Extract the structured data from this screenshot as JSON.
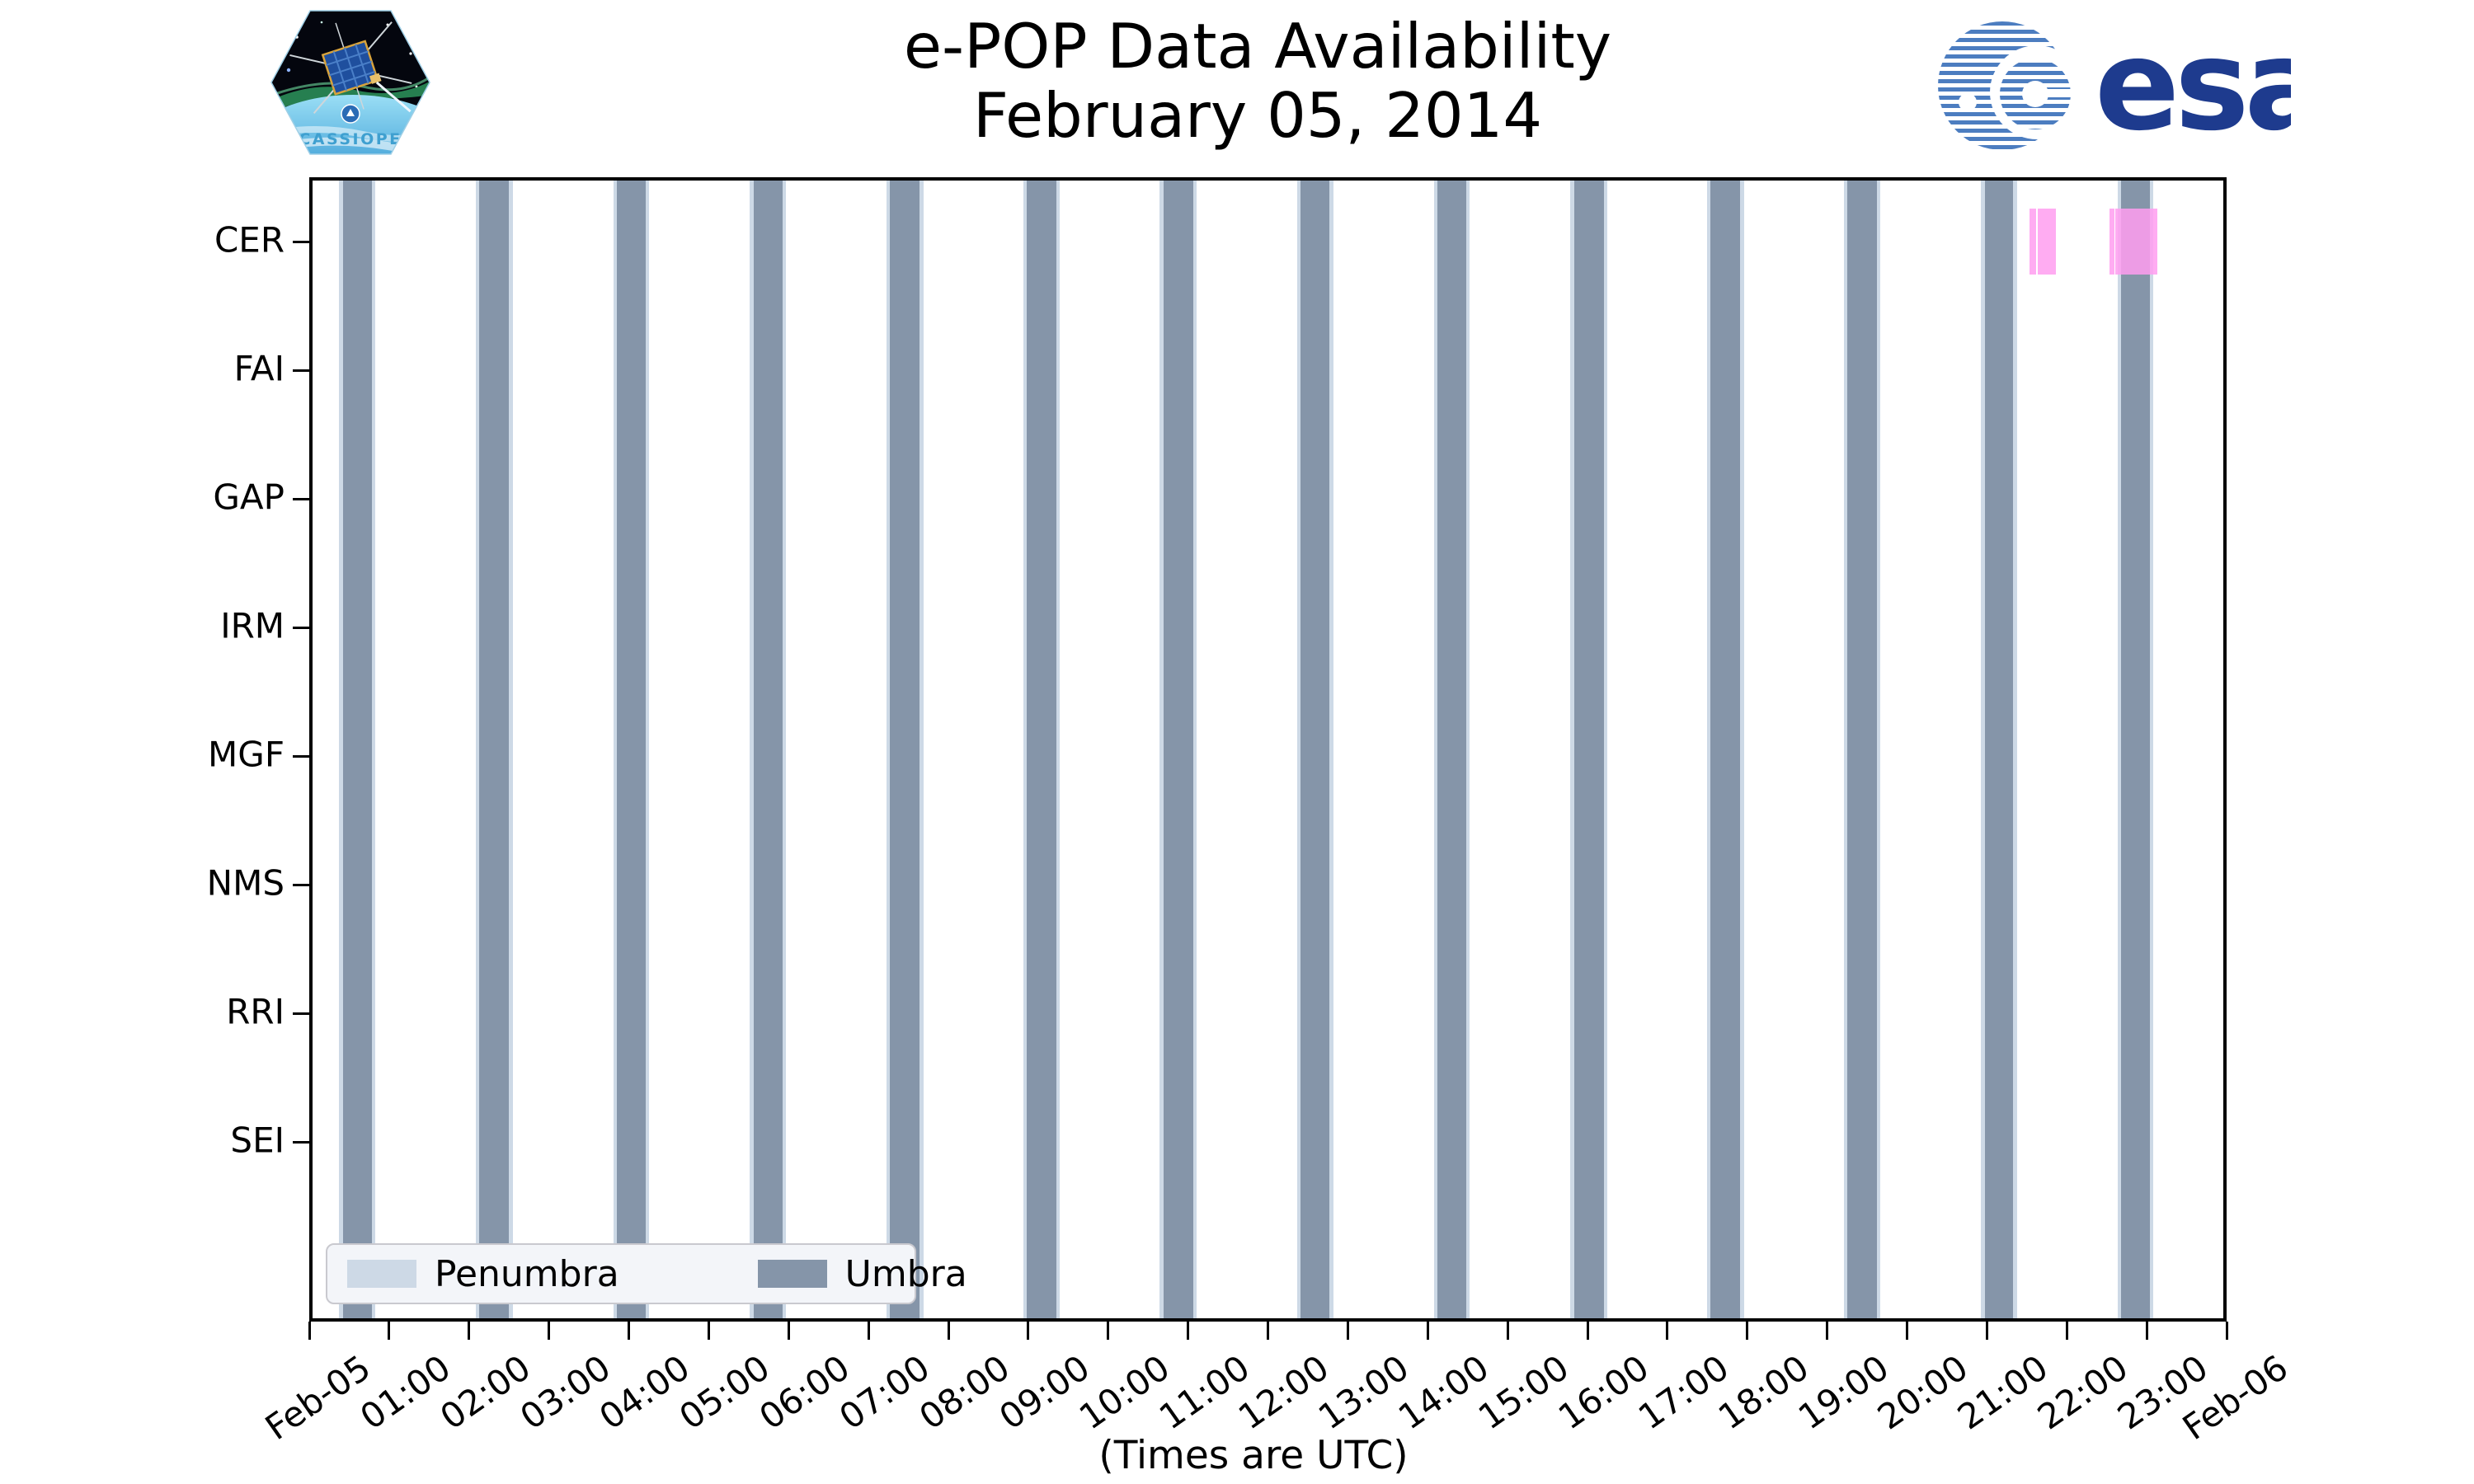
{
  "header": {
    "title": "e-POP Data Availability",
    "subtitle": "February 05, 2014",
    "cassiope_patch_label": "CASSIOPE",
    "esa_logo_text": "esa"
  },
  "chart_data": {
    "type": "timeline",
    "title": "e-POP Data Availability",
    "subtitle": "February 05, 2014",
    "xlabel": "(Times are UTC)",
    "x_axis": {
      "hours_span": 24,
      "tick_labels": [
        "Feb-05",
        "01:00",
        "02:00",
        "03:00",
        "04:00",
        "05:00",
        "06:00",
        "07:00",
        "08:00",
        "09:00",
        "10:00",
        "11:00",
        "12:00",
        "13:00",
        "14:00",
        "15:00",
        "16:00",
        "17:00",
        "18:00",
        "19:00",
        "20:00",
        "21:00",
        "22:00",
        "23:00",
        "Feb-06"
      ]
    },
    "instruments": [
      "CER",
      "FAI",
      "GAP",
      "IRM",
      "MGF",
      "NMS",
      "RRI",
      "SEI"
    ],
    "legend": {
      "entries": [
        {
          "label": "Penumbra",
          "color": "#cdd9e6"
        },
        {
          "label": "Umbra",
          "color": "#8595a9"
        }
      ]
    },
    "eclipse": {
      "umbra_color": "#8595a9",
      "penumbra_color": "#cdd9e6",
      "penumbra_margin_h": 0.045,
      "umbra_intervals_h": [
        [
          0.38,
          0.74
        ],
        [
          2.09,
          2.46
        ],
        [
          3.81,
          4.17
        ],
        [
          5.52,
          5.88
        ],
        [
          7.23,
          7.6
        ],
        [
          8.94,
          9.31
        ],
        [
          10.65,
          11.02
        ],
        [
          12.37,
          12.73
        ],
        [
          14.08,
          14.44
        ],
        [
          15.79,
          16.16
        ],
        [
          17.5,
          17.87
        ],
        [
          19.21,
          19.58
        ],
        [
          20.93,
          21.29
        ],
        [
          22.64,
          23.0
        ]
      ],
      "umbra_intervals_utc": [
        "00:23-00:45",
        "02:05-02:28",
        "03:49-04:10",
        "05:31-05:53",
        "07:14-07:36",
        "08:56-09:18",
        "10:39-11:01",
        "12:22-12:44",
        "14:05-14:26",
        "15:47-16:09",
        "17:30-17:52",
        "19:13-19:35",
        "20:56-21:17",
        "22:38-23:00"
      ]
    },
    "availability": {
      "CER": {
        "color": "#ff9df0",
        "intervals_h": [
          [
            21.49,
            21.57
          ],
          [
            21.59,
            21.82
          ],
          [
            22.49,
            22.55
          ],
          [
            22.57,
            23.09
          ]
        ],
        "intervals_utc": [
          "21:29-21:34",
          "21:35-21:49",
          "22:29-22:33",
          "22:34-23:05"
        ]
      }
    }
  }
}
